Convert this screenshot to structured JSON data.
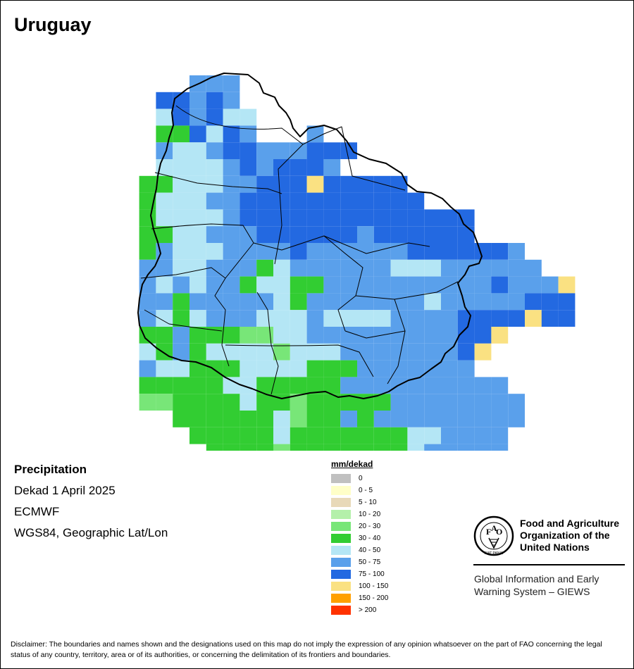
{
  "title": "Uruguay",
  "info": {
    "variable": "Precipitation",
    "period": "Dekad 1 April 2025",
    "source": "ECMWF",
    "projection": "WGS84, Geographic Lat/Lon"
  },
  "legend": {
    "title": "mm/dekad",
    "items": [
      {
        "label": "0",
        "color": "#c0c0c0"
      },
      {
        "label": "0 - 5",
        "color": "#ffffc8"
      },
      {
        "label": "5 - 10",
        "color": "#e8d9b8"
      },
      {
        "label": "10 - 20",
        "color": "#b4f0aa"
      },
      {
        "label": "20 - 30",
        "color": "#78e678"
      },
      {
        "label": "30 - 40",
        "color": "#32cd32"
      },
      {
        "label": "40 - 50",
        "color": "#b4e6f5"
      },
      {
        "label": "50 - 75",
        "color": "#5aa0eb"
      },
      {
        "label": "75 - 100",
        "color": "#2369e1"
      },
      {
        "label": "100 - 150",
        "color": "#fae182"
      },
      {
        "label": "150 - 200",
        "color": "#ffa000"
      },
      {
        "label": "> 200",
        "color": "#ff3200"
      }
    ]
  },
  "fao": {
    "name": "Food and Agriculture\nOrganization of the\nUnited Nations",
    "logo_letters": [
      "F",
      "A",
      "O"
    ],
    "motto": "FIAT PANIS",
    "giews": "Global Information and Early\nWarning System – GIEWS"
  },
  "disclaimer": "Disclaimer: The boundaries and names shown and the designations used on this map do not imply the expression of any opinion whatsoever on the part of FAO concerning the legal status of any country, territory, area or of its authorities, or concerning the delimitation of its frontiers and boundaries.",
  "map_grid": {
    "classes": [
      "0",
      "0 - 5",
      "5 - 10",
      "10 - 20",
      "20 - 30",
      "30 - 40",
      "40 - 50",
      "50 - 75",
      "75 - 100",
      "100 - 150",
      "150 - 200",
      "> 200"
    ],
    "rows": [
      ".....777........................",
      "...88787........................",
      "...687866.......................",
      "...558687...7...................",
      "...766788777888.................",
      "...66667878887..................",
      "..5566677888988888..............",
      "..56667788888888888.............",
      "..56666788888888888888..........",
      "..55667778888887888888..........",
      "..57666777787777778888887.......",
      "..776677756777777666777777......",
      "..76767756655777777777787779....",
      "..77577777657777777677777888....",
      "..76567776667666677778888988....",
      "..5575554466777777777889........",
      "..657566664666777777789........",
      "..76655566665557777777..........",
      "..5555566555557777777777........",
      "..44555565545555577777777.......",
      "....555555645575777777777.......",
      ".....5555565555555667777........",
      "......555545555555677777........",
      "........5544545454555767........",
      "..........4444444454............"
    ]
  }
}
